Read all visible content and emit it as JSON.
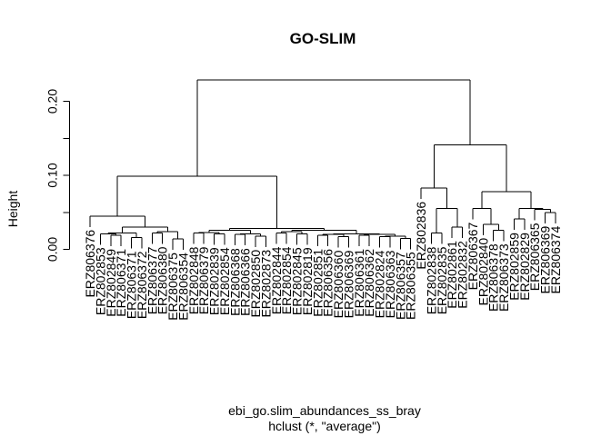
{
  "chart_data": {
    "type": "dendrogram",
    "title": "GO-SLIM",
    "xlabel": "ebi_go.slim_abundances_ss_bray",
    "sub": "hclust (*, \"average\")",
    "ylabel": "Height",
    "ylim": [
      0,
      0.235
    ],
    "yticks": [
      {
        "value": 0.0,
        "label": "0.00"
      },
      {
        "value": 0.1,
        "label": "0.10"
      },
      {
        "value": 0.2,
        "label": "0.20"
      }
    ],
    "yminor": [
      0.05,
      0.15
    ],
    "leaves": [
      "ERZ806376",
      "ERZ802853",
      "ERZ802849",
      "ERZ806371",
      "ERZ806371",
      "ERZ806372",
      "ERZ806377",
      "ERZ806380",
      "ERZ806375",
      "ERZ806354",
      "ERZ802848",
      "ERZ806379",
      "ERZ802839",
      "ERZ802854",
      "ERZ806368",
      "ERZ806366",
      "ERZ802850",
      "ERZ802873",
      "ERZ802844",
      "ERZ802854",
      "ERZ802845",
      "ERZ802819",
      "ERZ802851",
      "ERZ806356",
      "ERZ806360",
      "ERZ806369",
      "ERZ806361",
      "ERZ806362",
      "ERZ802824",
      "ERZ806363",
      "ERZ806357",
      "ERZ806355",
      "ERZ802836",
      "ERZ802838",
      "ERZ802835",
      "ERZ802861",
      "ERZ802832",
      "ERZ806367",
      "ERZ802840",
      "ERZ806378",
      "ERZ806373",
      "ERZ802859",
      "ERZ802829",
      "ERZ806365",
      "ERZ806369",
      "ERZ806374"
    ],
    "tree": [
      0.229,
      [
        0.099,
        [
          0.045,
          "ERZ806376",
          [
            0.03,
            [
              0.022,
              [
                0.021,
                "ERZ802853",
                [
                  0.019,
                  "ERZ802849",
                  "ERZ806371"
                ]
              ],
              [
                0.016,
                "ERZ806371",
                "ERZ806372"
              ]
            ],
            [
              0.024,
              [
                0.022,
                "ERZ806377",
                "ERZ806380"
              ],
              [
                0.014,
                "ERZ806375",
                "ERZ806354"
              ]
            ]
          ]
        ],
        [
          0.028,
          [
            0.026,
            [
              0.023,
              [
                0.022,
                "ERZ802848",
                "ERZ806379"
              ],
              [
                0.021,
                "ERZ802839",
                "ERZ802854"
              ]
            ],
            [
              0.021,
              [
                0.02,
                "ERZ806368",
                "ERZ806366"
              ],
              [
                0.018,
                "ERZ802850",
                "ERZ802873"
              ]
            ]
          ],
          [
            0.026,
            [
              0.024,
              [
                0.022,
                "ERZ802844",
                "ERZ802854"
              ],
              [
                0.021,
                "ERZ802845",
                "ERZ802819"
              ]
            ],
            [
              0.021,
              [
                0.02,
                [
                  0.019,
                  "ERZ802851",
                  "ERZ806356"
                ],
                [
                  0.017,
                  "ERZ806360",
                  "ERZ806369"
                ]
              ],
              [
                0.02,
                [
                  0.019,
                  "ERZ806361",
                  "ERZ806362"
                ],
                [
                  0.018,
                  [
                    0.017,
                    "ERZ802824",
                    "ERZ806363"
                  ],
                  [
                    0.015,
                    "ERZ806357",
                    "ERZ806355"
                  ]
                ]
              ]
            ]
          ]
        ]
      ],
      [
        0.141,
        [
          0.083,
          "ERZ802836",
          [
            0.055,
            [
              0.022,
              "ERZ802838",
              "ERZ802835"
            ],
            [
              0.03,
              "ERZ802861",
              "ERZ802832"
            ]
          ]
        ],
        [
          0.078,
          [
            0.055,
            "ERZ806367",
            [
              0.034,
              "ERZ802840",
              [
                0.026,
                "ERZ806378",
                "ERZ806373"
              ]
            ]
          ],
          [
            0.055,
            [
              0.041,
              "ERZ802859",
              "ERZ802829"
            ],
            [
              0.054,
              "ERZ806365",
              [
                0.05,
                "ERZ806369",
                "ERZ806374"
              ]
            ]
          ]
        ]
      ]
    ]
  }
}
